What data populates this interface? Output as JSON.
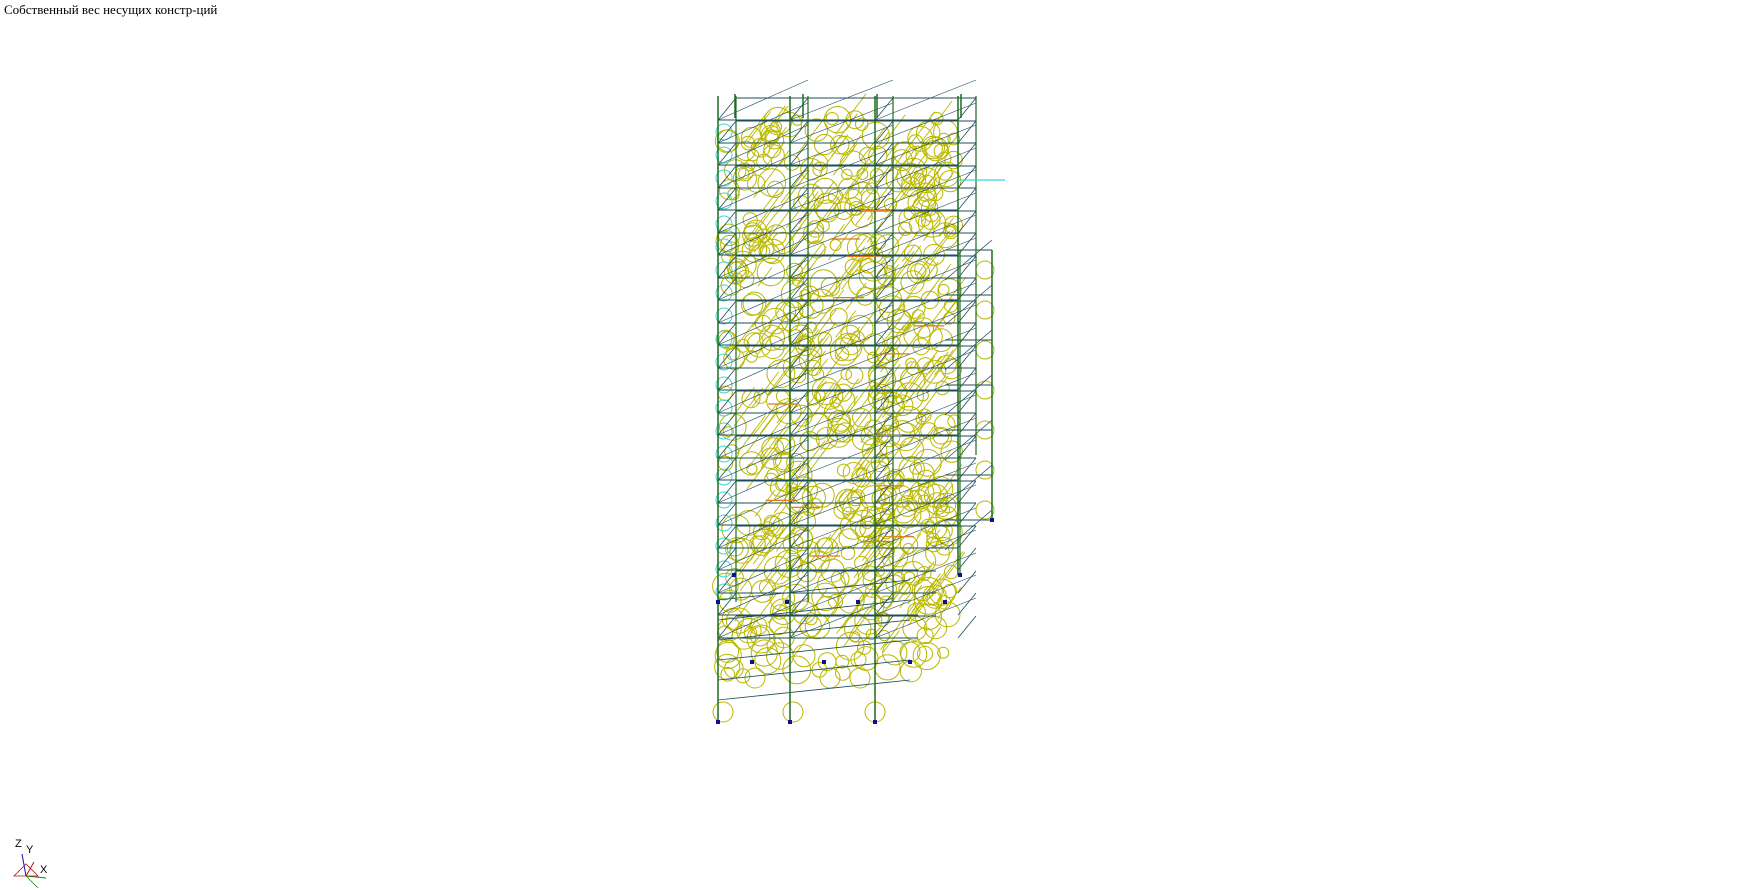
{
  "view": {
    "title": "Собственный вес несущих констр-ций"
  },
  "axes": {
    "z_label": "Z",
    "y_label": "Y",
    "x_label": "X"
  },
  "colors": {
    "column": "#1f6b1f",
    "floor_beam": "#1d4d5c",
    "load_symbol": "#b9b800",
    "load_symbol_cyan": "#3fd6d6",
    "highlight_member": "#e07a1a",
    "support": "#10108a",
    "axis_x": "#0a8a0a",
    "axis_y": "#c01010",
    "axis_z": "#1010c0"
  }
}
